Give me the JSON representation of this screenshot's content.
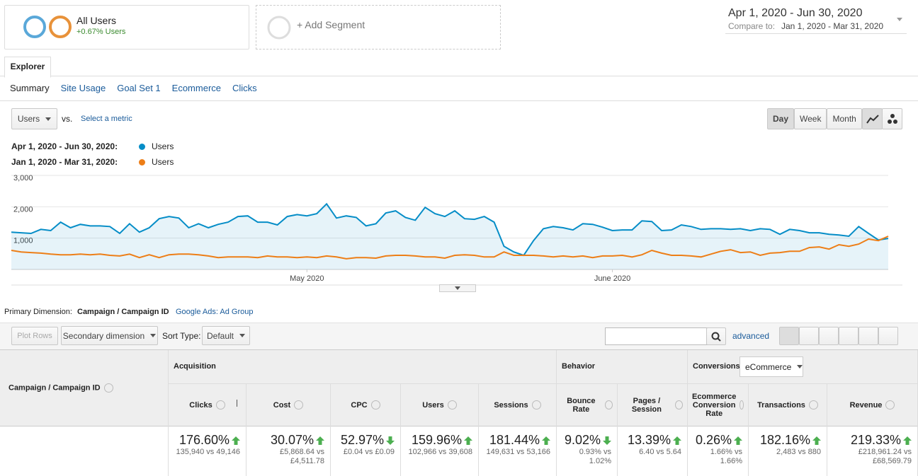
{
  "segments": {
    "name": "All Users",
    "detail": "+0.67% Users",
    "add": "+ Add Segment"
  },
  "date_range": {
    "primary": "Apr 1, 2020 - Jun 30, 2020",
    "compare_label": "Compare to:",
    "compare": "Jan 1, 2020 - Mar 31, 2020"
  },
  "tabs": [
    "Explorer"
  ],
  "subtabs": [
    "Summary",
    "Site Usage",
    "Goal Set 1",
    "Ecommerce",
    "Clicks"
  ],
  "controls": {
    "metric": "Users",
    "vs": "vs.",
    "select_metric": "Select a metric",
    "periods": [
      "Day",
      "Week",
      "Month"
    ]
  },
  "chart_data": {
    "type": "line",
    "categories": [
      null,
      null,
      null,
      null,
      null,
      null,
      null,
      null,
      null,
      null,
      null,
      null,
      null,
      null,
      null,
      null,
      null,
      null,
      null,
      null,
      null,
      null,
      null,
      null,
      null,
      null,
      null,
      null,
      null,
      null,
      "May 2020",
      null,
      null,
      null,
      null,
      null,
      null,
      null,
      null,
      null,
      null,
      null,
      null,
      null,
      null,
      null,
      null,
      null,
      null,
      null,
      null,
      null,
      null,
      null,
      null,
      null,
      null,
      null,
      null,
      null,
      null,
      "June 2020",
      null,
      null,
      null,
      null,
      null,
      null,
      null,
      null,
      null,
      null,
      null,
      null,
      null,
      null,
      null,
      null,
      null,
      null,
      null,
      null,
      null,
      null,
      null,
      null,
      null,
      null,
      null,
      null
    ],
    "series": [
      {
        "period": "Apr 1, 2020 - Jun 30, 2020:",
        "name": "Users",
        "color": "#058dc7",
        "values": [
          1190,
          1170,
          1150,
          1280,
          1240,
          1510,
          1330,
          1440,
          1390,
          1390,
          1370,
          1150,
          1460,
          1190,
          1330,
          1620,
          1690,
          1640,
          1330,
          1460,
          1330,
          1440,
          1510,
          1690,
          1710,
          1510,
          1510,
          1420,
          1690,
          1750,
          1710,
          1780,
          2090,
          1640,
          1710,
          1660,
          1390,
          1460,
          1800,
          1870,
          1660,
          1570,
          1980,
          1780,
          1690,
          1870,
          1620,
          1600,
          1690,
          1510,
          740,
          560,
          450,
          920,
          1300,
          1370,
          1330,
          1260,
          1460,
          1440,
          1350,
          1240,
          1260,
          1260,
          1550,
          1530,
          1240,
          1260,
          1420,
          1370,
          1280,
          1300,
          1300,
          1280,
          1300,
          1240,
          1300,
          1280,
          1120,
          1280,
          1240,
          1170,
          1170,
          1120,
          1100,
          1060,
          1370,
          1150,
          940,
          990
        ]
      },
      {
        "period": "Jan 1, 2020 - Mar 31, 2020:",
        "name": "Users",
        "color": "#ed7e17",
        "values": [
          610,
          560,
          540,
          520,
          490,
          470,
          470,
          490,
          470,
          490,
          450,
          430,
          490,
          380,
          470,
          380,
          470,
          490,
          490,
          470,
          430,
          380,
          400,
          400,
          400,
          380,
          430,
          400,
          400,
          380,
          400,
          380,
          430,
          400,
          340,
          380,
          380,
          360,
          430,
          450,
          450,
          430,
          400,
          400,
          360,
          450,
          470,
          450,
          400,
          400,
          560,
          450,
          450,
          450,
          430,
          400,
          430,
          400,
          430,
          380,
          430,
          430,
          450,
          400,
          470,
          610,
          520,
          450,
          450,
          430,
          400,
          490,
          580,
          630,
          540,
          560,
          450,
          520,
          540,
          580,
          580,
          700,
          720,
          650,
          790,
          740,
          810,
          970,
          920,
          1060
        ]
      }
    ],
    "ylim": [
      0,
      3000
    ],
    "yticks": [
      {
        "value": 1000,
        "label": "1,000"
      },
      {
        "value": 2000,
        "label": "2,000"
      },
      {
        "value": 3000,
        "label": "3,000"
      }
    ],
    "grid": true
  },
  "dimension": {
    "label": "Primary Dimension:",
    "active": "Campaign / Campaign ID",
    "other": "Google Ads: Ad Group"
  },
  "toolbar": {
    "plot_rows": "Plot Rows",
    "secondary": "Secondary dimension",
    "sort_label": "Sort Type:",
    "sort": "Default",
    "advanced": "advanced"
  },
  "table": {
    "dimension_header": "Campaign / Campaign ID",
    "groups": [
      "Acquisition",
      "Behavior",
      "Conversions"
    ],
    "conversion_select": "eCommerce",
    "columns": [
      {
        "name": "Clicks",
        "change": "176.60%",
        "direction": "up",
        "detail": "135,940 vs 49,146"
      },
      {
        "name": "Cost",
        "change": "30.07%",
        "direction": "up",
        "detail": "£5,868.64 vs £4,511.78"
      },
      {
        "name": "CPC",
        "change": "52.97%",
        "direction": "down",
        "detail": "£0.04 vs £0.09"
      },
      {
        "name": "Users",
        "change": "159.96%",
        "direction": "up",
        "detail": "102,966 vs 39,608"
      },
      {
        "name": "Sessions",
        "change": "181.44%",
        "direction": "up",
        "detail": "149,631 vs 53,166"
      },
      {
        "name": "Bounce Rate",
        "change": "9.02%",
        "direction": "down",
        "detail": "0.93% vs 1.02%"
      },
      {
        "name": "Pages / Session",
        "change": "13.39%",
        "direction": "up",
        "detail": "6.40 vs 5.64"
      },
      {
        "name": "Ecommerce Conversion Rate",
        "change": "0.26%",
        "direction": "up",
        "detail": "1.66% vs 1.66%"
      },
      {
        "name": "Transactions",
        "change": "182.16%",
        "direction": "up",
        "detail": "2,483 vs 880"
      },
      {
        "name": "Revenue",
        "change": "219.33%",
        "direction": "up",
        "detail": "£218,961.24 vs £68,569.79"
      }
    ]
  }
}
